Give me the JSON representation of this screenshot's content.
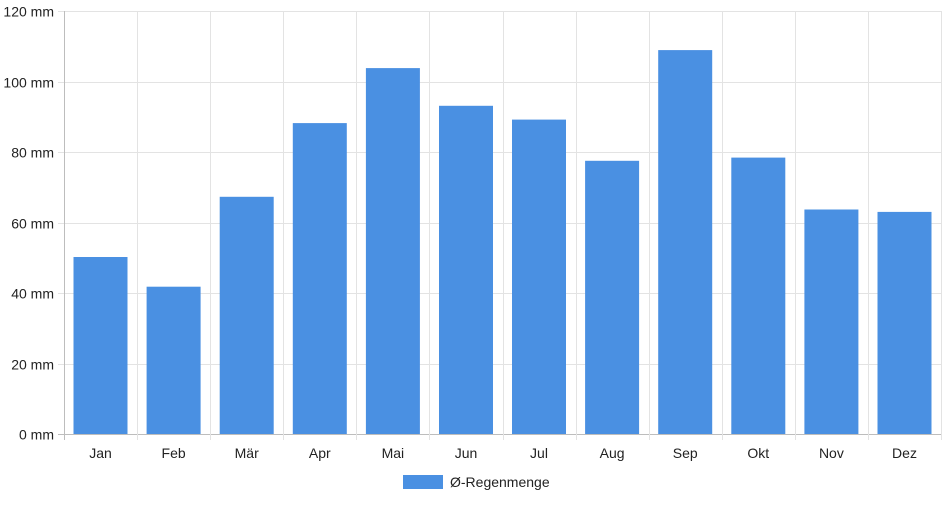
{
  "chart_data": {
    "type": "bar",
    "categories": [
      "Jan",
      "Feb",
      "Mär",
      "Apr",
      "Mai",
      "Jun",
      "Jul",
      "Aug",
      "Sep",
      "Okt",
      "Nov",
      "Dez"
    ],
    "series": [
      {
        "name": "Ø-Regenmenge",
        "color": "#4a90e2",
        "values": [
          50.2,
          41.8,
          67.3,
          88.2,
          103.8,
          93.1,
          89.2,
          77.5,
          108.9,
          78.4,
          63.7,
          63.0
        ]
      }
    ],
    "y_unit": "mm",
    "ylim": [
      0,
      120
    ],
    "y_ticks": [
      0,
      20,
      40,
      60,
      80,
      100,
      120
    ],
    "y_tick_labels": [
      "0 mm",
      "20 mm",
      "40 mm",
      "60 mm",
      "80 mm",
      "100 mm",
      "120 mm"
    ],
    "grid": true,
    "legend_position": "bottom-center"
  }
}
